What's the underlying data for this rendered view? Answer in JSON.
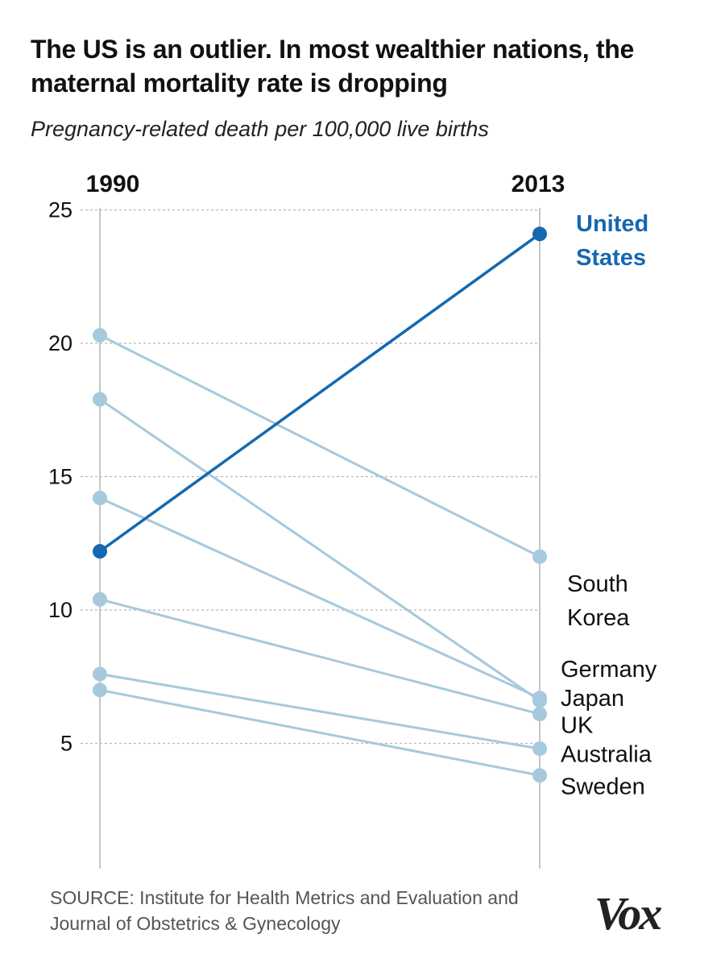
{
  "title": "The US is an outlier. In most wealthier nations, the maternal mortality rate is dropping",
  "subtitle": "Pregnancy-related death per 100,000 live births",
  "source": "SOURCE: Institute for Health Metrics and Evaluation and Journal of Obstetrics & Gynecology",
  "logo": "Vox",
  "colors": {
    "highlight": "#1568b0",
    "muted": "#a6c9dd",
    "grid": "#b8b8b8",
    "axis": "#c6c6c6"
  },
  "chart_data": {
    "type": "line",
    "x": [
      "1990",
      "2013"
    ],
    "ylim": [
      0,
      25
    ],
    "yticks": [
      5,
      10,
      15,
      20,
      25
    ],
    "grid": true,
    "series": [
      {
        "label_lines": [
          "United",
          "States"
        ],
        "values": [
          12.2,
          24.1
        ],
        "highlight": true,
        "label_y": 24.5
      },
      {
        "label_lines": [
          "South",
          "Korea"
        ],
        "values": [
          20.3,
          12.0
        ],
        "highlight": false,
        "label_y": 11.0
      },
      {
        "label_lines": [
          "Germany"
        ],
        "values": [
          17.9,
          6.6
        ],
        "highlight": false,
        "label_y": 7.8
      },
      {
        "label_lines": [
          "Japan"
        ],
        "values": [
          14.2,
          6.7
        ],
        "highlight": false,
        "label_y": 6.7
      },
      {
        "label_lines": [
          "UK"
        ],
        "values": [
          10.4,
          6.1
        ],
        "highlight": false,
        "label_y": 5.7
      },
      {
        "label_lines": [
          "Australia"
        ],
        "values": [
          7.6,
          4.8
        ],
        "highlight": false,
        "label_y": 4.6
      },
      {
        "label_lines": [
          "Sweden"
        ],
        "values": [
          7.0,
          3.8
        ],
        "highlight": false,
        "label_y": 3.4
      }
    ]
  }
}
